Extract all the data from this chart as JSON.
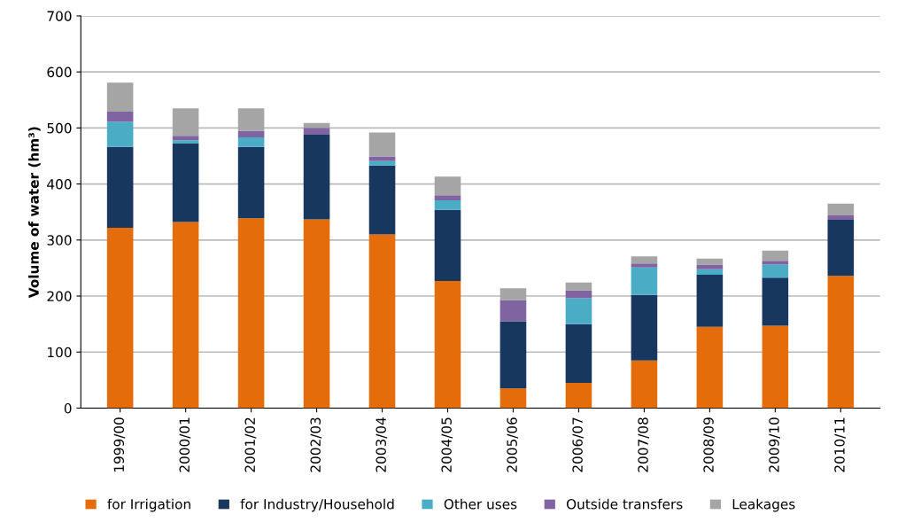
{
  "chart_data": {
    "type": "bar",
    "stacked": true,
    "ylabel": "Volume of water (hm³)",
    "categories": [
      "1999/00",
      "2000/01",
      "2001/02",
      "2002/03",
      "2003/04",
      "2004/05",
      "2005/06",
      "2006/07",
      "2007/08",
      "2008/09",
      "2009/10",
      "2010/11"
    ],
    "series": [
      {
        "name": "for Irrigation",
        "color": "#e46c0a",
        "values": [
          322,
          332,
          339,
          337,
          310,
          227,
          35,
          45,
          85,
          145,
          147,
          236
        ]
      },
      {
        "name": "for Industry/Household",
        "color": "#17375e",
        "values": [
          144,
          140,
          127,
          151,
          123,
          127,
          120,
          105,
          117,
          93,
          86,
          100
        ]
      },
      {
        "name": "Other uses",
        "color": "#4bacc6",
        "values": [
          45,
          6,
          17,
          0,
          8,
          17,
          0,
          46,
          49,
          10,
          23,
          0
        ]
      },
      {
        "name": "Outside transfers",
        "color": "#8064a2",
        "values": [
          18,
          8,
          12,
          12,
          8,
          9,
          38,
          14,
          7,
          8,
          7,
          8
        ]
      },
      {
        "name": "Leakages",
        "color": "#a5a5a5",
        "values": [
          52,
          49,
          40,
          9,
          43,
          33,
          21,
          14,
          13,
          11,
          18,
          21
        ]
      }
    ],
    "ylim": [
      0,
      700
    ],
    "yticks": [
      0,
      100,
      200,
      300,
      400,
      500,
      600,
      700
    ],
    "grid": "y",
    "legend": "bottom"
  }
}
